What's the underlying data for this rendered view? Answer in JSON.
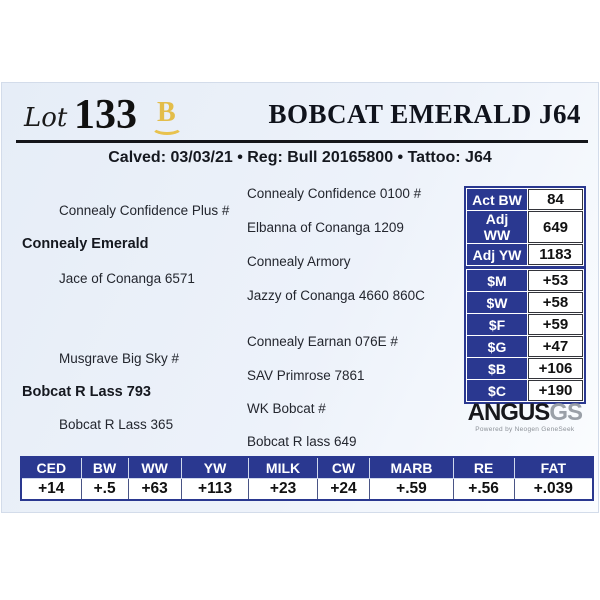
{
  "header": {
    "lot_label": "Lot",
    "lot_number": "133",
    "brand_letter": "B",
    "title": "BOBCAT EMERALD J64",
    "info_line": "Calved: 03/03/21 • Reg: Bull 20165800 • Tattoo: J64"
  },
  "pedigree": {
    "sire": {
      "name": "Connealy Emerald",
      "sire": "Connealy Confidence Plus #",
      "dam": "Jace of Conanga 6571",
      "sire_sire": "Connealy Confidence 0100 #",
      "sire_dam": "Elbanna of Conanga 1209",
      "dam_sire": "Connealy Armory",
      "dam_dam": "Jazzy of Conanga 4660 860C"
    },
    "dam": {
      "name": "Bobcat R Lass 793",
      "sire": "Musgrave Big Sky #",
      "dam": "Bobcat R Lass 365",
      "sire_sire": "Connealy Earnan 076E #",
      "sire_dam": "SAV Primrose 7861",
      "dam_sire": "WK Bobcat #",
      "dam_dam": "Bobcat R lass 649"
    }
  },
  "performance": {
    "rows": [
      {
        "label": "Act BW",
        "value": "84"
      },
      {
        "label": "Adj WW",
        "value": "649"
      },
      {
        "label": "Adj YW",
        "value": "1183"
      }
    ]
  },
  "dollar_values": {
    "rows": [
      {
        "label": "$M",
        "value": "+53"
      },
      {
        "label": "$W",
        "value": "+58"
      },
      {
        "label": "$F",
        "value": "+59"
      },
      {
        "label": "$G",
        "value": "+47"
      },
      {
        "label": "$B",
        "value": "+106"
      },
      {
        "label": "$C",
        "value": "+190"
      }
    ]
  },
  "logo": {
    "angus": "ANGUS",
    "gs": "GS",
    "tagline": "Powered by Neogen GeneSeek"
  },
  "epd_table": {
    "columns": [
      "CED",
      "BW",
      "WW",
      "YW",
      "MILK",
      "CW",
      "MARB",
      "RE",
      "FAT"
    ],
    "values": [
      "+14",
      "+.5",
      "+63",
      "+113",
      "+23",
      "+24",
      "+.59",
      "+.56",
      "+.039"
    ]
  },
  "colors": {
    "navy": "#2a3890",
    "gold": "#e3bd4a",
    "card_bg": "#edf2fa"
  }
}
